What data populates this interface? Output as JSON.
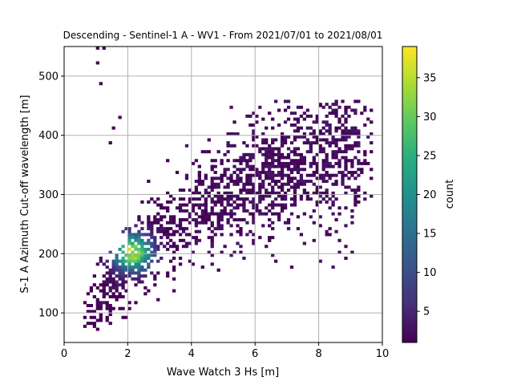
{
  "chart_data": {
    "type": "heatmap",
    "title": "Descending - Sentinel-1 A - WV1 - From 2021/07/01 to 2021/08/01",
    "xlabel": "Wave Watch 3 Hs [m]",
    "ylabel": "S-1 A Azimuth Cut-off wavelength [m]",
    "xlim": [
      0,
      10
    ],
    "ylim": [
      50,
      550
    ],
    "x_ticks": [
      "0",
      "2",
      "4",
      "6",
      "8",
      "10"
    ],
    "y_ticks": [
      "100",
      "200",
      "300",
      "400",
      "500"
    ],
    "grid": true,
    "colorbar": {
      "label": "count",
      "range": [
        1,
        39
      ],
      "ticks": [
        "5",
        "10",
        "15",
        "20",
        "25",
        "30",
        "35"
      ],
      "colormap": "viridis"
    },
    "bin_size": {
      "x": 0.1,
      "y": 5
    },
    "density_ridge": {
      "hs": [
        0.8,
        1.5,
        2.0,
        2.5,
        3.0,
        4.0,
        5.0,
        6.0,
        7.0,
        8.0,
        9.0
      ],
      "cutoff": [
        100,
        150,
        185,
        210,
        232,
        265,
        295,
        320,
        345,
        365,
        385
      ]
    },
    "peak_bin": {
      "hs": 2.1,
      "cutoff": 200,
      "count": 39
    },
    "outliers": [
      {
        "hs": 1.0,
        "cutoff": 545
      },
      {
        "hs": 1.2,
        "cutoff": 545
      },
      {
        "hs": 1.0,
        "cutoff": 520
      },
      {
        "hs": 1.1,
        "cutoff": 485
      },
      {
        "hs": 1.7,
        "cutoff": 428
      },
      {
        "hs": 1.5,
        "cutoff": 410
      },
      {
        "hs": 1.4,
        "cutoff": 385
      },
      {
        "hs": 8.0,
        "cutoff": 448
      },
      {
        "hs": 7.4,
        "cutoff": 445
      },
      {
        "hs": 8.8,
        "cutoff": 425
      },
      {
        "hs": 9.5,
        "cutoff": 350
      },
      {
        "hs": 8.5,
        "cutoff": 290
      }
    ]
  }
}
